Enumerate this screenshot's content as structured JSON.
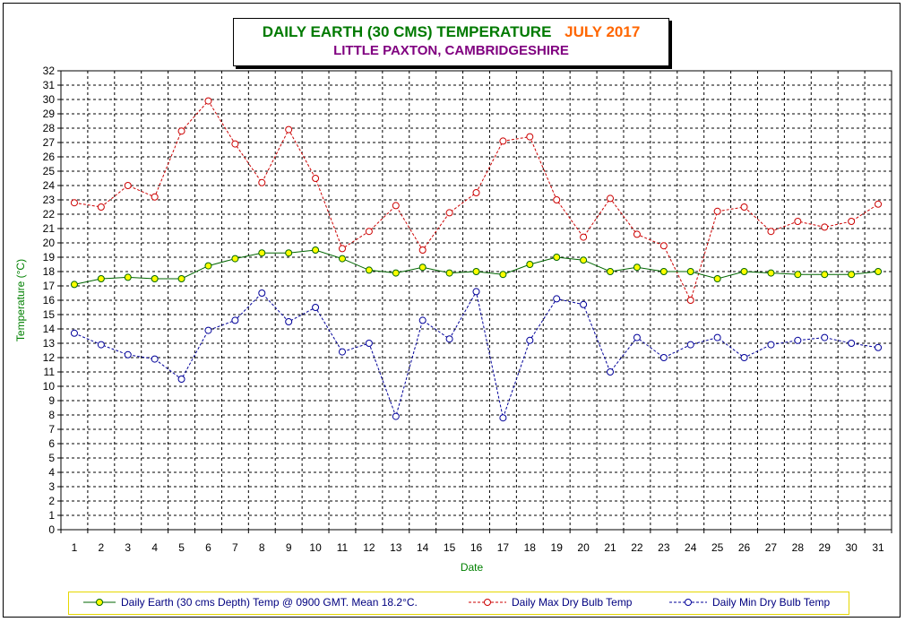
{
  "title": {
    "main": "DAILY EARTH (30 CMS) TEMPERATURE",
    "month": "JULY 2017",
    "subtitle": "LITTLE PAXTON, CAMBRIDGESHIRE"
  },
  "chart_data": {
    "type": "line",
    "xlabel": "Date",
    "ylabel": "Temperature (°C)",
    "ylim": [
      0,
      32
    ],
    "grid": true,
    "legend_position": "bottom",
    "categories": [
      "1",
      "2",
      "3",
      "4",
      "5",
      "6",
      "7",
      "8",
      "9",
      "10",
      "11",
      "12",
      "13",
      "14",
      "15",
      "16",
      "17",
      "18",
      "19",
      "20",
      "21",
      "22",
      "23",
      "24",
      "25",
      "26",
      "27",
      "28",
      "29",
      "30",
      "31"
    ],
    "series": [
      {
        "name": "Daily Earth (30 cms Depth) Temp @ 0900 GMT. Mean 18.2°C.",
        "color": "#006600",
        "marker_fill": "#ffff00",
        "style": "solid",
        "values": [
          17.1,
          17.5,
          17.6,
          17.5,
          17.5,
          18.4,
          18.9,
          19.3,
          19.3,
          19.5,
          18.9,
          18.1,
          17.9,
          18.3,
          17.9,
          18.0,
          17.8,
          18.5,
          19.0,
          18.8,
          18.0,
          18.3,
          18.0,
          18.0,
          17.5,
          18.0,
          17.9,
          17.8,
          17.8,
          17.8,
          18.0
        ]
      },
      {
        "name": "Daily Max Dry Bulb Temp",
        "color": "#cc0000",
        "marker_fill": "none",
        "style": "dashed",
        "values": [
          22.8,
          22.5,
          24.0,
          23.2,
          27.8,
          29.9,
          26.9,
          24.2,
          27.9,
          24.5,
          19.6,
          20.8,
          22.6,
          19.5,
          22.1,
          23.5,
          27.1,
          27.4,
          23.0,
          20.4,
          23.1,
          20.6,
          19.8,
          16.0,
          22.2,
          22.5,
          20.8,
          21.5,
          21.1,
          21.5,
          22.7
        ]
      },
      {
        "name": "Daily Min Dry Bulb Temp",
        "color": "#000099",
        "marker_fill": "none",
        "style": "dashed",
        "values": [
          13.7,
          12.9,
          12.2,
          11.9,
          10.5,
          13.9,
          14.6,
          16.5,
          14.5,
          15.5,
          12.4,
          13.0,
          7.9,
          14.6,
          13.3,
          16.6,
          7.8,
          13.2,
          16.1,
          15.7,
          11.0,
          13.4,
          12.0,
          12.9,
          13.4,
          12.0,
          12.9,
          13.2,
          13.4,
          13.0,
          12.7
        ]
      }
    ]
  }
}
